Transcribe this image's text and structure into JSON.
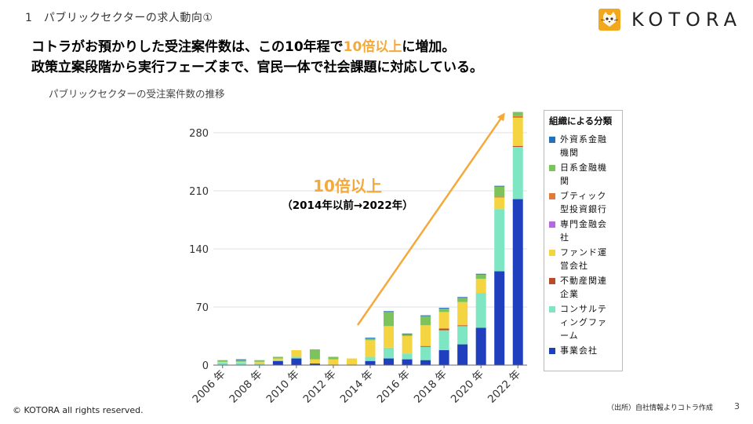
{
  "header": {
    "section_title": "1　パブリックセクターの求人動向①",
    "logo_text": "KOTORA"
  },
  "headline": {
    "line1_pre": "コトラがお預かりした受注案件数は、この10年程で",
    "line1_highlight": "10倍以上",
    "line1_post": "に増加。",
    "line2": "政策立案段階から実行フェーズまで、官民一体で社会課題に対応している。"
  },
  "subcaption": "パブリックセクターの受注案件数の推移",
  "annotation": {
    "big": "10倍以上",
    "small": "（2014年以前→2022年）"
  },
  "footer": {
    "copyright": "© KOTORA all rights reserved.",
    "source": "（出所）自社情報よりコトラ作成",
    "page": "3"
  },
  "chart_data": {
    "type": "bar",
    "stacked": true,
    "title": "パブリックセクターの受注案件数の推移",
    "xlabel": "",
    "ylabel": "",
    "ylim": [
      0,
      300
    ],
    "yticks": [
      0,
      70,
      140,
      210,
      280
    ],
    "years": [
      2006,
      2007,
      2008,
      2009,
      2010,
      2011,
      2012,
      2013,
      2014,
      2015,
      2016,
      2017,
      2018,
      2019,
      2020,
      2021,
      2022
    ],
    "tick_labels": [
      "2006 年",
      "2008 年",
      "2010 年",
      "2012 年",
      "2014 年",
      "2016 年",
      "2018 年",
      "2020 年",
      "2022 年"
    ],
    "tick_years": [
      2006,
      2008,
      2010,
      2012,
      2014,
      2016,
      2018,
      2020,
      2022
    ],
    "legend_title": "組織による分類",
    "series": [
      {
        "name": "事業会社",
        "color": "#1f3fbf",
        "values": [
          0,
          0,
          0,
          5,
          8,
          2,
          0,
          0,
          5,
          8,
          7,
          6,
          18,
          25,
          45,
          113,
          200
        ]
      },
      {
        "name": "コンサルティングファーム",
        "color": "#7ee6c3",
        "values": [
          3,
          3,
          2,
          1,
          2,
          0,
          0,
          0,
          5,
          13,
          7,
          16,
          24,
          22,
          42,
          75,
          63
        ]
      },
      {
        "name": "不動産関連企業",
        "color": "#b94a2a",
        "values": [
          0,
          0,
          0,
          0,
          0,
          0,
          0,
          0,
          0,
          0,
          0,
          1,
          2,
          1,
          0,
          0,
          1
        ]
      },
      {
        "name": "ファンド運営会社",
        "color": "#f5d442",
        "values": [
          1,
          1,
          2,
          2,
          8,
          5,
          7,
          8,
          20,
          26,
          21,
          25,
          20,
          28,
          17,
          14,
          34
        ]
      },
      {
        "name": "専門金融会社",
        "color": "#b467e0",
        "values": [
          0,
          0,
          0,
          0,
          0,
          0,
          0,
          0,
          0,
          0,
          0,
          0,
          0,
          0,
          0,
          0,
          0
        ]
      },
      {
        "name": "ブティック型投資銀行",
        "color": "#e07b39",
        "values": [
          0,
          0,
          0,
          0,
          0,
          0,
          0,
          0,
          0,
          0,
          0,
          0,
          0,
          0,
          0,
          1,
          2
        ]
      },
      {
        "name": "日系金融機関",
        "color": "#7cc35c",
        "values": [
          2,
          2,
          2,
          2,
          0,
          12,
          3,
          0,
          2,
          17,
          2,
          11,
          4,
          5,
          5,
          12,
          5
        ]
      },
      {
        "name": "外資系金融機関",
        "color": "#2470c0",
        "values": [
          0,
          1,
          0,
          0,
          0,
          0,
          0,
          0,
          1,
          1,
          1,
          1,
          1,
          1,
          1,
          1,
          0
        ]
      }
    ],
    "legend_order": [
      {
        "label": "外資系金融\n機関",
        "color": "#2470c0"
      },
      {
        "label": "日系金融機\n関",
        "color": "#7cc35c"
      },
      {
        "label": "ブティック\n型投資銀行",
        "color": "#e07b39"
      },
      {
        "label": "専門金融会\n社",
        "color": "#b467e0"
      },
      {
        "label": "ファンド運\n営会社",
        "color": "#f5d442"
      },
      {
        "label": "不動産関連\n企業",
        "color": "#b94a2a"
      },
      {
        "label": "コンサルテ\nィングファ\nーム",
        "color": "#7ee6c3"
      },
      {
        "label": "事業会社",
        "color": "#1f3fbf"
      }
    ],
    "arrow_color": "#f5a93b"
  }
}
